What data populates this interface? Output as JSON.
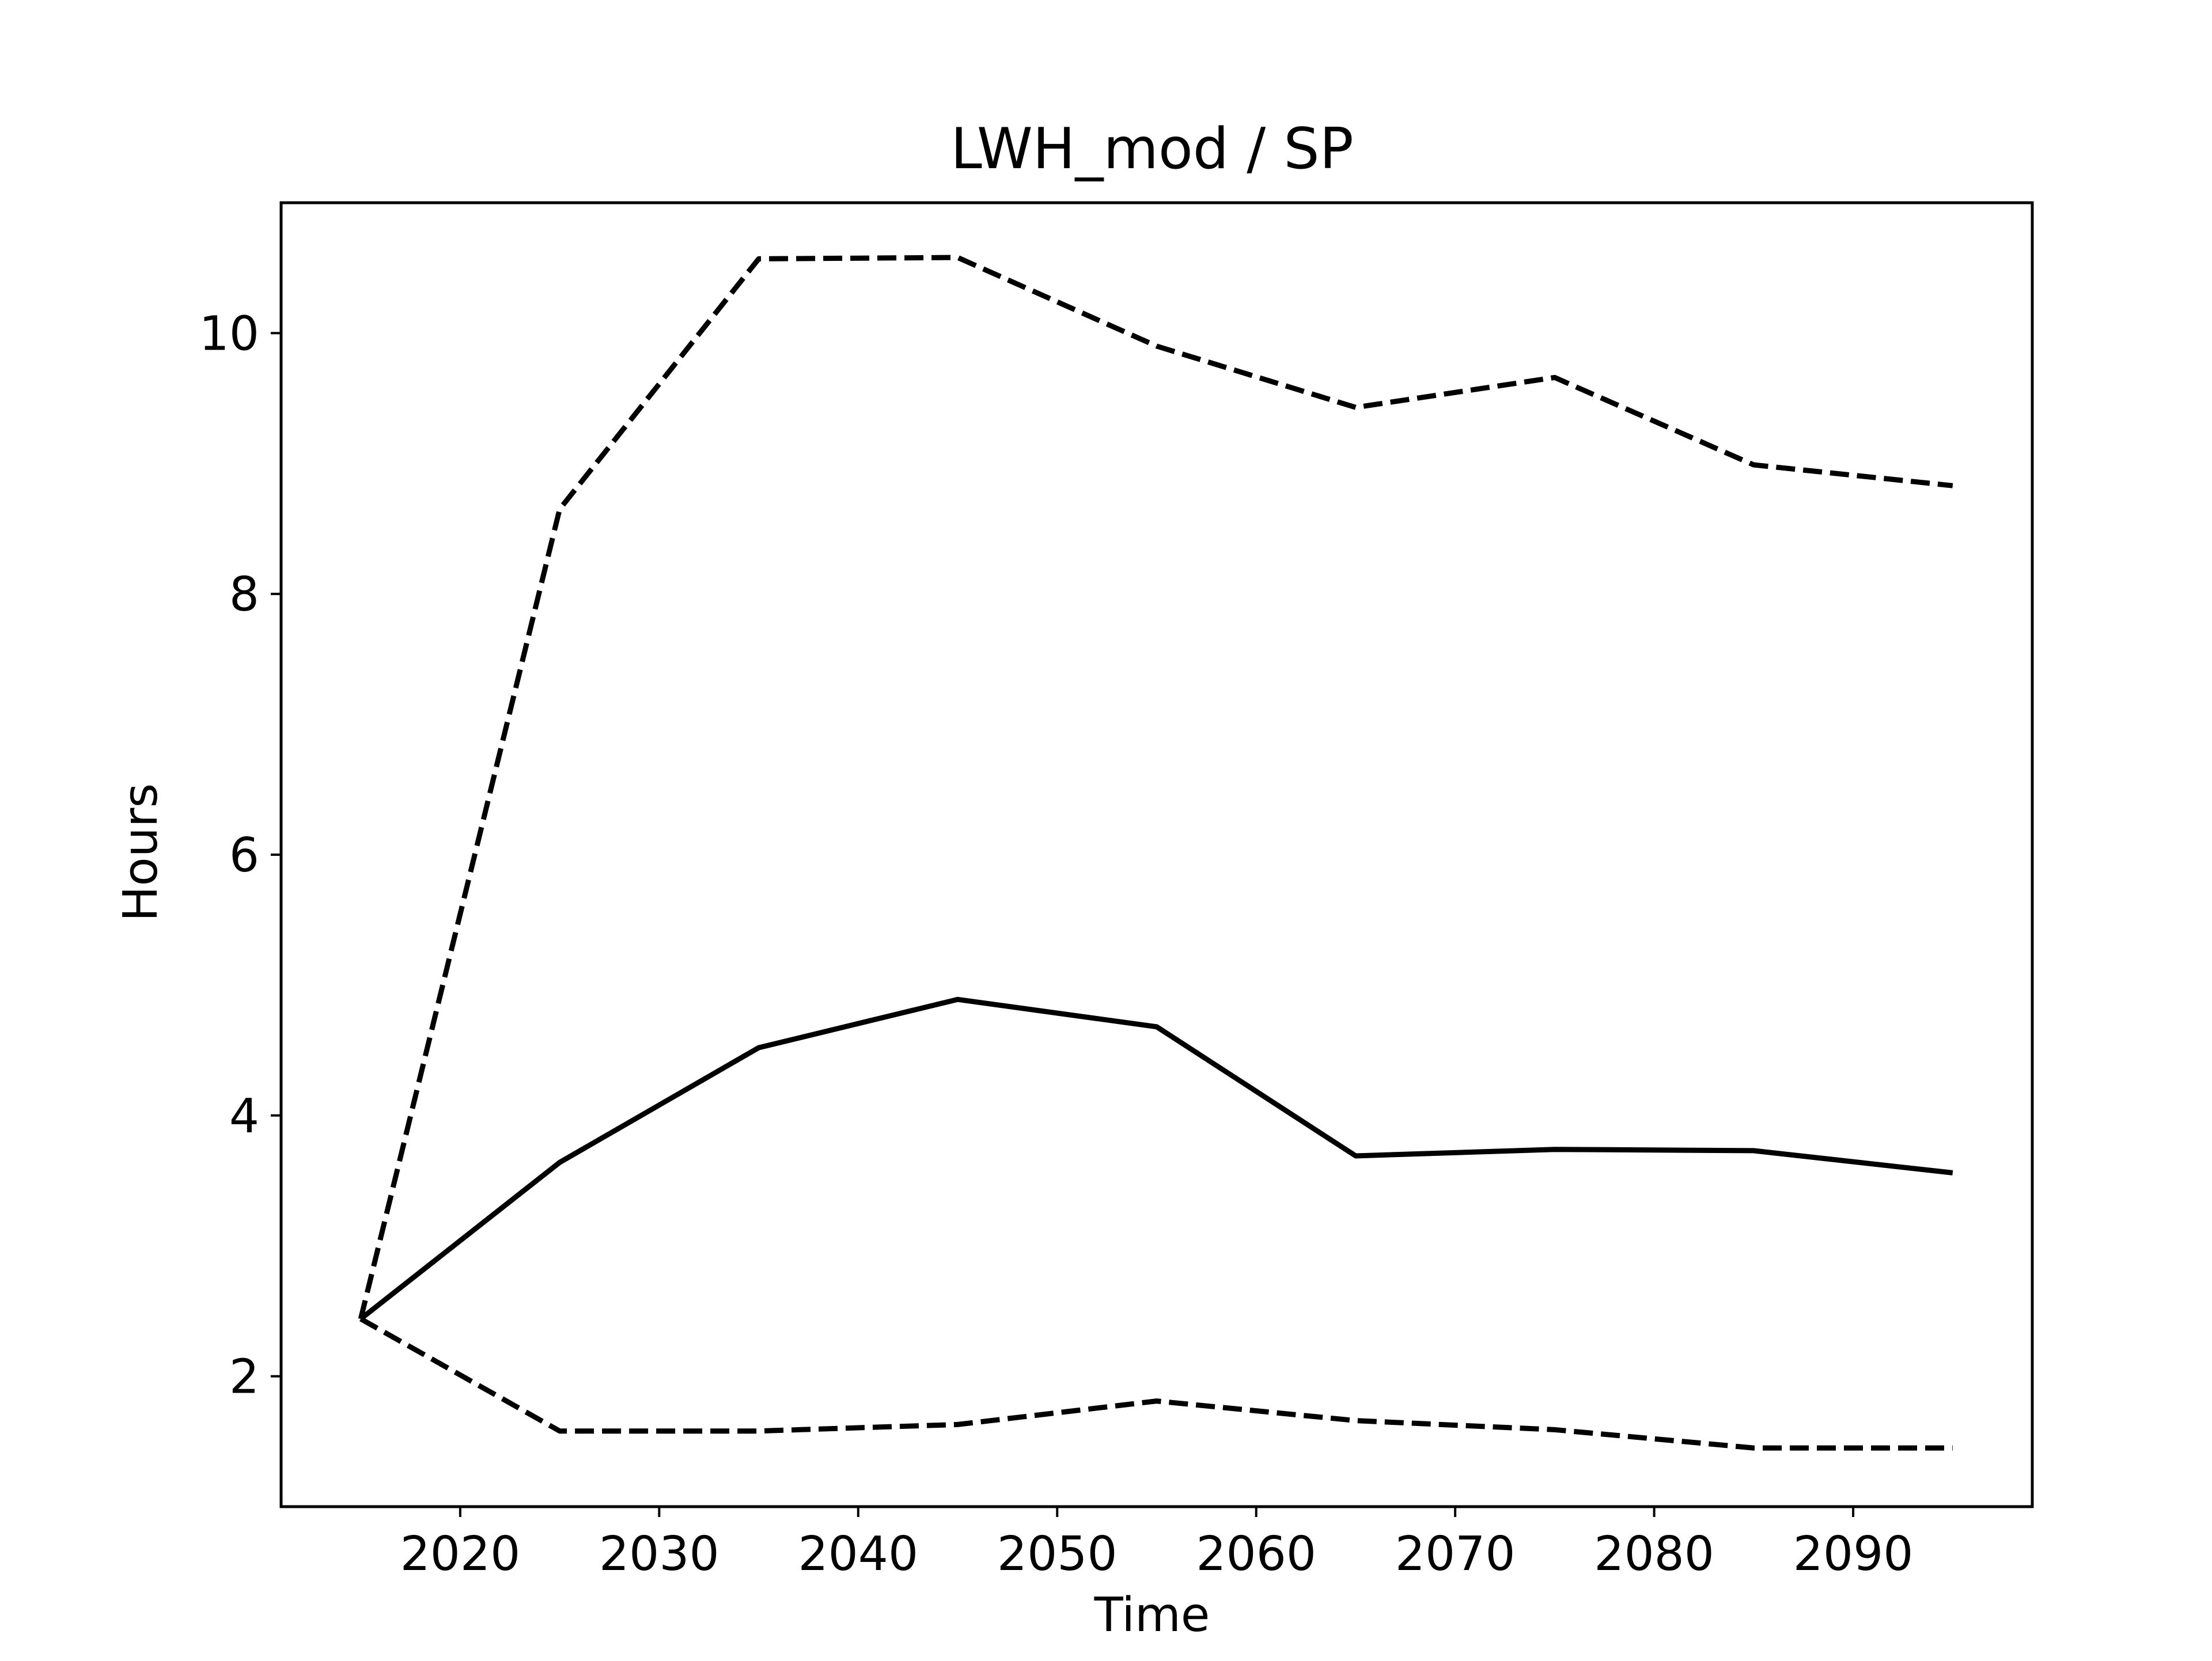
{
  "chart_data": {
    "type": "line",
    "title": "LWH_mod / SP",
    "xlabel": "Time",
    "ylabel": "Hours",
    "xlim": [
      2011,
      2099
    ],
    "ylim": [
      1.0,
      11.0
    ],
    "x_ticks": [
      2020,
      2030,
      2040,
      2050,
      2060,
      2070,
      2080,
      2090
    ],
    "y_ticks": [
      2,
      4,
      6,
      8,
      10
    ],
    "grid": false,
    "x": [
      2015,
      2025,
      2035,
      2045,
      2055,
      2065,
      2075,
      2085,
      2095
    ],
    "series": [
      {
        "style": "dashed",
        "color": "#000000",
        "values": [
          2.44,
          8.65,
          10.57,
          10.58,
          9.9,
          9.43,
          9.66,
          8.99,
          8.83
        ]
      },
      {
        "style": "solid",
        "color": "#000000",
        "values": [
          2.44,
          3.64,
          4.52,
          4.89,
          4.68,
          3.69,
          3.74,
          3.73,
          3.56
        ]
      },
      {
        "style": "dashed",
        "color": "#000000",
        "values": [
          2.44,
          1.58,
          1.58,
          1.63,
          1.81,
          1.66,
          1.59,
          1.45,
          1.45
        ]
      }
    ]
  }
}
